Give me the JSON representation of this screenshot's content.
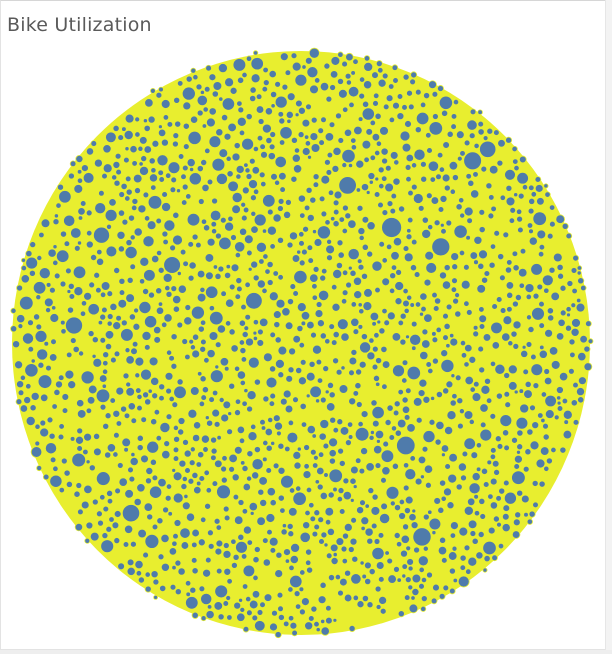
{
  "title": "Bike Utilization",
  "colors": {
    "bubble_fill": "#4f7bab",
    "bubble_stroke": "#e8ee2f",
    "background": "#ffffff",
    "title_text": "#5a5a5a"
  },
  "chart_data": {
    "type": "packed-bubble",
    "title": "Bike Utilization",
    "notes_visible": "",
    "large_bubbles": [
      {
        "label": "",
        "value": 100
      },
      {
        "label": "",
        "value": 88
      },
      {
        "label": "",
        "value": 86
      },
      {
        "label": "",
        "value": 84
      },
      {
        "label": "",
        "value": 82
      },
      {
        "label": "",
        "value": 80
      },
      {
        "label": "",
        "value": 78
      },
      {
        "label": "",
        "value": 76
      },
      {
        "label": "",
        "value": 74
      },
      {
        "label": "",
        "value": 72
      },
      {
        "label": "",
        "value": 70
      },
      {
        "label": "",
        "value": 68
      }
    ],
    "small_bubble_count": 3200,
    "grid": false,
    "legend": "none"
  }
}
